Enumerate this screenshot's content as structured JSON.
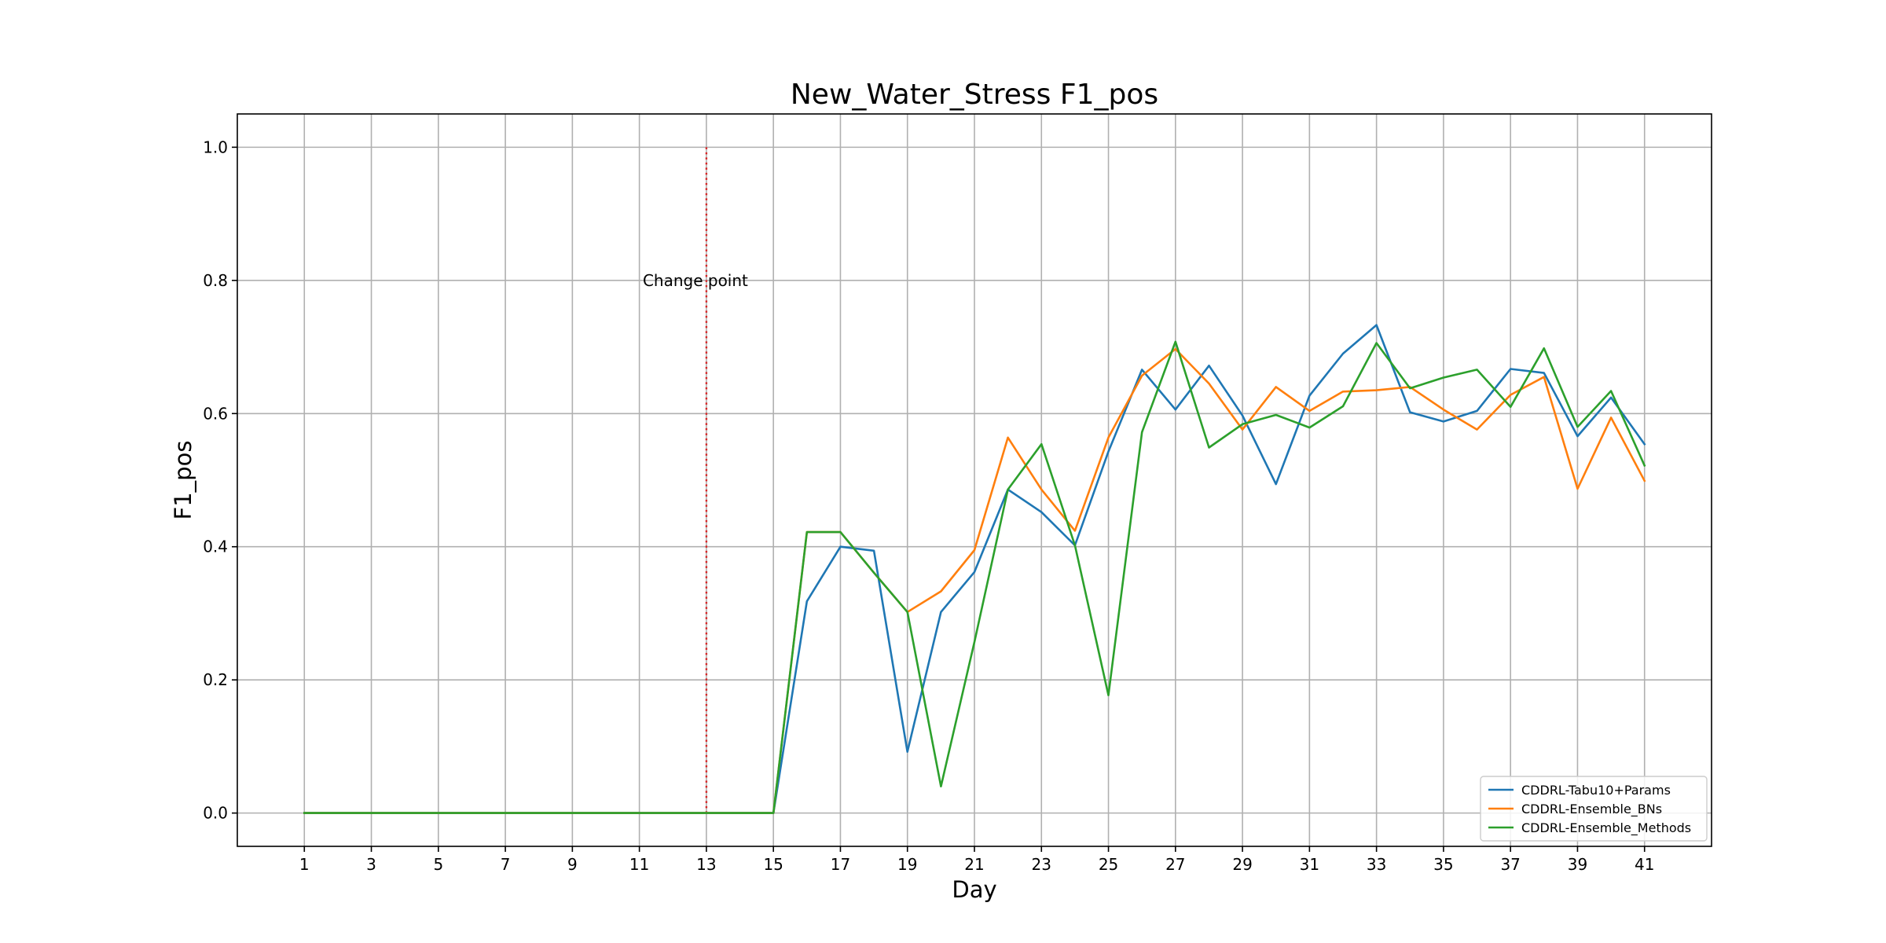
{
  "chart_data": {
    "type": "line",
    "title": "New_Water_Stress F1_pos",
    "xlabel": "Day",
    "ylabel": "F1_pos",
    "x": [
      1,
      2,
      3,
      4,
      5,
      6,
      7,
      8,
      9,
      10,
      11,
      12,
      13,
      14,
      15,
      16,
      17,
      18,
      19,
      20,
      21,
      22,
      23,
      24,
      25,
      26,
      27,
      28,
      29,
      30,
      31,
      32,
      33,
      34,
      35,
      36,
      37,
      38,
      39,
      40,
      41
    ],
    "xticks": [
      1,
      3,
      5,
      7,
      9,
      11,
      13,
      15,
      17,
      19,
      21,
      23,
      25,
      27,
      29,
      31,
      33,
      35,
      37,
      39,
      41
    ],
    "yticks": [
      0.0,
      0.2,
      0.4,
      0.6,
      0.8,
      1.0
    ],
    "ytick_labels": [
      "0.0",
      "0.2",
      "0.4",
      "0.6",
      "0.8",
      "1.0"
    ],
    "xlim": [
      -1,
      43
    ],
    "ylim": [
      -0.05,
      1.05
    ],
    "grid": true,
    "legend_position": "bottom-right",
    "series": [
      {
        "name": "CDDRL-Tabu10+Params",
        "color": "#1f77b4",
        "values": [
          0,
          0,
          0,
          0,
          0,
          0,
          0,
          0,
          0,
          0,
          0,
          0,
          0,
          0,
          0,
          0.318,
          0.4,
          0.394,
          0.092,
          0.302,
          0.362,
          0.486,
          0.452,
          0.402,
          0.543,
          0.666,
          0.606,
          0.672,
          0.597,
          0.494,
          0.627,
          0.69,
          0.733,
          0.602,
          0.588,
          0.604,
          0.667,
          0.661,
          0.566,
          0.624,
          0.554
        ]
      },
      {
        "name": "CDDRL-Ensemble_BNs",
        "color": "#ff7f0e",
        "values": [
          0,
          0,
          0,
          0,
          0,
          0,
          0,
          0,
          0,
          0,
          0,
          0,
          0,
          0,
          0,
          0.422,
          0.422,
          0.361,
          0.302,
          0.333,
          0.395,
          0.564,
          0.486,
          0.424,
          0.564,
          0.657,
          0.697,
          0.645,
          0.576,
          0.64,
          0.604,
          0.633,
          0.635,
          0.64,
          0.606,
          0.576,
          0.628,
          0.655,
          0.487,
          0.594,
          0.499
        ]
      },
      {
        "name": "CDDRL-Ensemble_Methods",
        "color": "#2ca02c",
        "values": [
          0,
          0,
          0,
          0,
          0,
          0,
          0,
          0,
          0,
          0,
          0,
          0,
          0,
          0,
          0,
          0.422,
          0.422,
          0.361,
          0.302,
          0.04,
          0.257,
          0.486,
          0.554,
          0.402,
          0.177,
          0.572,
          0.708,
          0.549,
          0.584,
          0.598,
          0.579,
          0.611,
          0.706,
          0.638,
          0.654,
          0.666,
          0.61,
          0.698,
          0.58,
          0.634,
          0.522
        ]
      }
    ],
    "annotations": [
      {
        "type": "vline",
        "x": 13,
        "y_from": 0.0,
        "y_to": 1.0,
        "color": "#d62728",
        "style": "dotted"
      },
      {
        "type": "text",
        "text": "Change point",
        "x": 13,
        "y": 0.8
      }
    ]
  }
}
